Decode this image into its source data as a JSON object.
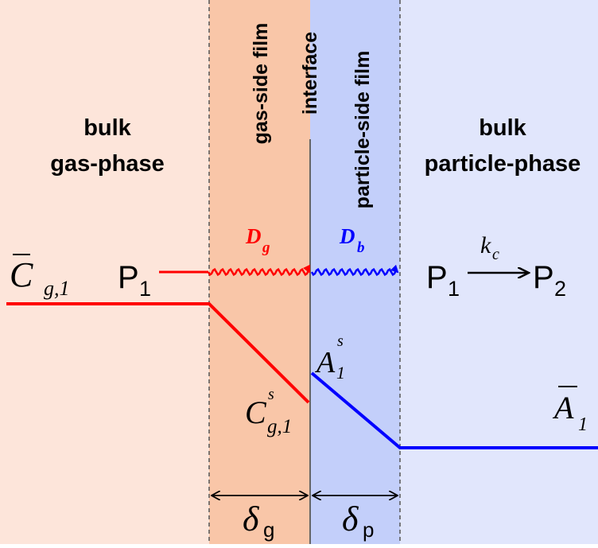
{
  "regions": {
    "bulk_gas": {
      "label_line1": "bulk",
      "label_line2": "gas-phase",
      "color": "#fde5da"
    },
    "gas_film": {
      "label": "gas-side film",
      "color": "#f9c6a8"
    },
    "interface": {
      "label": "interface"
    },
    "particle_film": {
      "label": "particle-side film",
      "color": "#c3cffa"
    },
    "bulk_particle": {
      "label_line1": "bulk",
      "label_line2": "particle-phase",
      "color": "#e1e6fc"
    }
  },
  "colors": {
    "gas": "#ff0000",
    "particle": "#0000ff",
    "line": "#000000"
  },
  "symbols": {
    "c_bar": {
      "base": "C",
      "sub": "g,1"
    },
    "p1_left": {
      "base": "P",
      "sub": "1"
    },
    "d_g": {
      "base": "D",
      "sub": "g"
    },
    "d_b": {
      "base": "D",
      "sub": "b"
    },
    "p1_right": {
      "base": "P",
      "sub": "1"
    },
    "k_c": {
      "base": "k",
      "sub": "c"
    },
    "p2": {
      "base": "P",
      "sub": "2"
    },
    "a_s": {
      "base": "A",
      "sup": "s",
      "sub": "1"
    },
    "c_s": {
      "base": "C",
      "sup": "s",
      "sub": "g,1"
    },
    "a_bar": {
      "base": "A",
      "sub": "1"
    },
    "delta_g": {
      "base": "δ",
      "sub": "g"
    },
    "delta_p": {
      "base": "δ",
      "sub": "p"
    }
  }
}
